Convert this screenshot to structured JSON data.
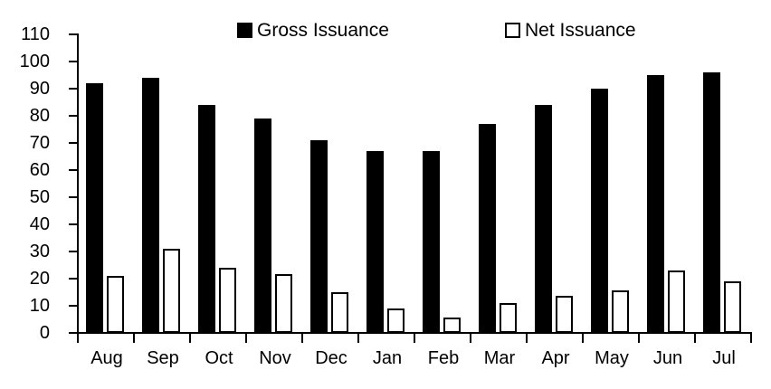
{
  "chart_data": {
    "type": "bar",
    "title": "",
    "xlabel": "",
    "ylabel": "",
    "categories": [
      "Aug",
      "Sep",
      "Oct",
      "Nov",
      "Dec",
      "Jan",
      "Feb",
      "Mar",
      "Apr",
      "May",
      "Jun",
      "Jul"
    ],
    "series": [
      {
        "name": "Gross Issuance",
        "style": "filled",
        "fill_color": "#000000",
        "border_color": "#000000",
        "values": [
          92,
          94,
          84,
          79,
          71,
          67,
          67,
          77,
          84,
          90,
          95,
          96
        ]
      },
      {
        "name": "Net Issuance",
        "style": "outlined",
        "fill_color": "#ffffff",
        "border_color": "#000000",
        "values": [
          21,
          31,
          24,
          21.5,
          15,
          9,
          5.5,
          11,
          13.5,
          15.5,
          23,
          19
        ]
      }
    ],
    "ylim": [
      0,
      110
    ],
    "ytick_interval": 10,
    "yticks": [
      0,
      10,
      20,
      30,
      40,
      50,
      60,
      70,
      80,
      90,
      100,
      110
    ],
    "legend_position": "top",
    "grid": false,
    "axis_color": "#000000",
    "background_color": "#ffffff"
  }
}
